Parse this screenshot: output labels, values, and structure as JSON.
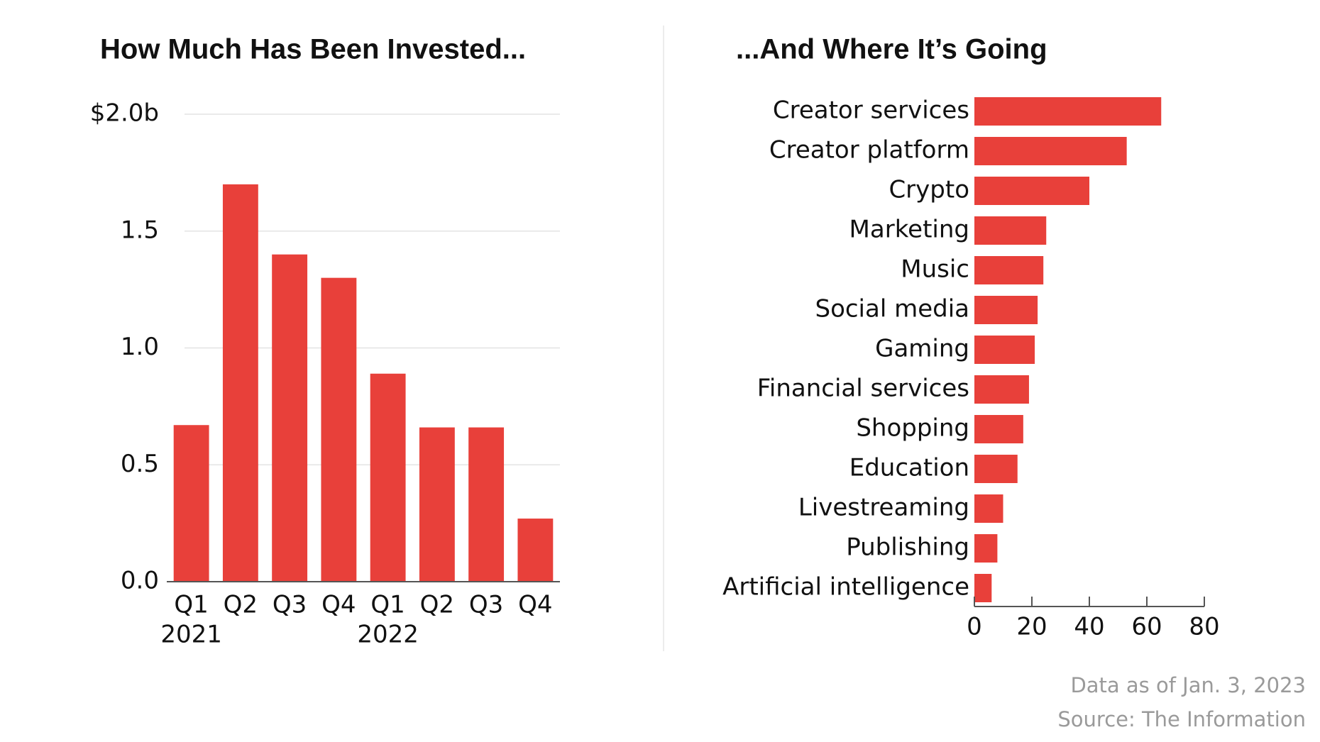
{
  "chart_data": [
    {
      "type": "bar",
      "title": "How Much Has Been Invested...",
      "categories": [
        "Q1",
        "Q2",
        "Q3",
        "Q4",
        "Q1",
        "Q2",
        "Q3",
        "Q4"
      ],
      "year_labels": [
        "2021",
        null,
        null,
        null,
        "2022",
        null,
        null,
        null
      ],
      "values": [
        0.67,
        1.7,
        1.4,
        1.3,
        0.89,
        0.66,
        0.66,
        0.27
      ],
      "color": "#e8403a",
      "ylim": [
        0,
        2
      ],
      "yticks": [
        {
          "value": 0,
          "label": "0.0"
        },
        0.5,
        {
          "value": 1,
          "label": "1.0"
        },
        1.5,
        {
          "value": 2,
          "label": "$2.0b"
        }
      ],
      "grid": true
    },
    {
      "type": "hbar",
      "title": "...And Where It’s Going",
      "categories": [
        "Creator services",
        "Creator platform",
        "Crypto",
        "Marketing",
        "Music",
        "Social media",
        "Gaming",
        "Financial services",
        "Shopping",
        "Education",
        "Livestreaming",
        "Publishing",
        "Artificial intelligence"
      ],
      "values": [
        65,
        53,
        40,
        25,
        24,
        22,
        21,
        19,
        17,
        15,
        10,
        8,
        6
      ],
      "color": "#e8403a",
      "xlim": [
        0,
        80
      ],
      "xticks": [
        0,
        20,
        40,
        60,
        80
      ],
      "grid": false
    }
  ],
  "footer": [
    "Data as of Jan. 3, 2023",
    "Source: The Information"
  ]
}
